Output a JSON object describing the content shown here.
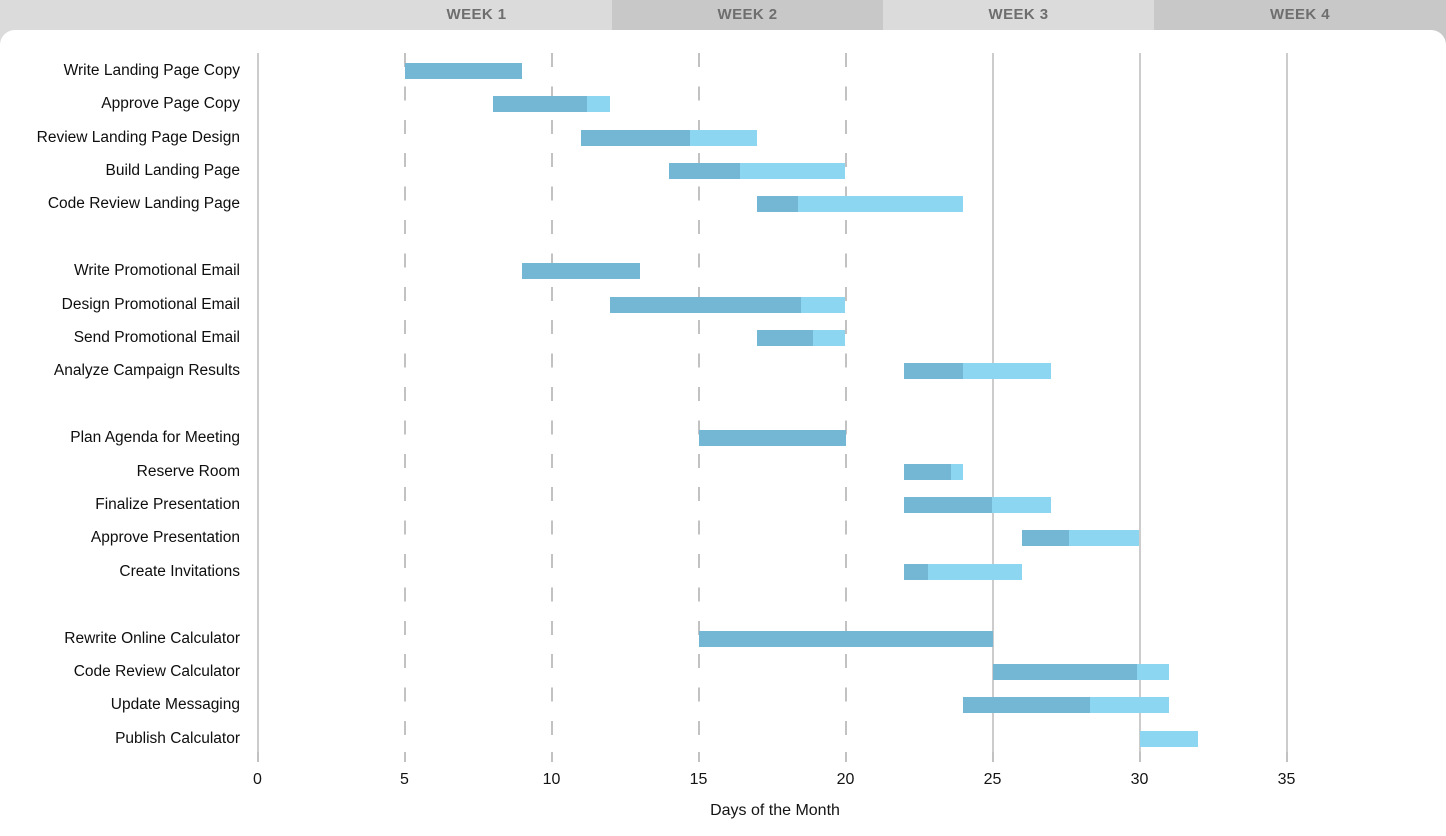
{
  "header": {
    "weeks": [
      "WEEK 1",
      "WEEK 2",
      "WEEK 3",
      "WEEK 4"
    ]
  },
  "axis": {
    "title": "Days of the Month",
    "tick_labels": [
      "0",
      "5",
      "10",
      "15",
      "20",
      "25",
      "30",
      "35"
    ]
  },
  "chart_data": {
    "type": "bar",
    "variant": "gantt-horizontal",
    "title": "",
    "xlabel": "Days of the Month",
    "ylabel": "",
    "xlim": [
      0,
      40.5
    ],
    "x_ticks": [
      0,
      5,
      10,
      15,
      20,
      25,
      30,
      35
    ],
    "solid_gridline_days": [
      0,
      25,
      30,
      35
    ],
    "dashed_gridline_days": [
      5,
      10,
      15,
      20
    ],
    "grid": "vertical-only",
    "legend": "none",
    "week_bands": [
      {
        "label": "WEEK 1",
        "shade": "light"
      },
      {
        "label": "WEEK 2",
        "shade": "dark"
      },
      {
        "label": "WEEK 3",
        "shade": "light"
      },
      {
        "label": "WEEK 4",
        "shade": "dark"
      }
    ],
    "colors": {
      "bar_complete": "#73b7d5",
      "bar_remaining": "#8dd6f1",
      "gridline_solid": "#cccccc",
      "gridline_dashed": "#c2c2c2",
      "week_band_light": "#dbdbdb",
      "week_band_dark": "#c8c8c8",
      "week_text": "#6e6e6e",
      "task_text": "#0e0e0e"
    },
    "groups": [
      {
        "tasks": [
          {
            "label": "Write Landing Page Copy",
            "start": 5,
            "progress_until": 9,
            "end": 9
          },
          {
            "label": "Approve Page Copy",
            "start": 8,
            "progress_until": 11.2,
            "end": 12
          },
          {
            "label": "Review Landing Page Design",
            "start": 11,
            "progress_until": 14.7,
            "end": 17
          },
          {
            "label": "Build Landing Page",
            "start": 14,
            "progress_until": 16.4,
            "end": 20
          },
          {
            "label": "Code Review Landing Page",
            "start": 17,
            "progress_until": 18.4,
            "end": 24
          }
        ]
      },
      {
        "tasks": [
          {
            "label": "Write Promotional Email",
            "start": 9,
            "progress_until": 13,
            "end": 13
          },
          {
            "label": "Design Promotional Email",
            "start": 12,
            "progress_until": 18.5,
            "end": 20
          },
          {
            "label": "Send Promotional Email",
            "start": 17,
            "progress_until": 18.9,
            "end": 20
          },
          {
            "label": "Analyze Campaign Results",
            "start": 22,
            "progress_until": 24,
            "end": 27
          }
        ]
      },
      {
        "tasks": [
          {
            "label": "Plan Agenda for Meeting",
            "start": 15,
            "progress_until": 20,
            "end": 20
          },
          {
            "label": "Reserve Room",
            "start": 22,
            "progress_until": 23.6,
            "end": 24
          },
          {
            "label": "Finalize Presentation",
            "start": 22,
            "progress_until": 25,
            "end": 27
          },
          {
            "label": "Approve Presentation",
            "start": 26,
            "progress_until": 27.6,
            "end": 30
          },
          {
            "label": "Create Invitations",
            "start": 22,
            "progress_until": 22.8,
            "end": 26
          }
        ]
      },
      {
        "tasks": [
          {
            "label": "Rewrite Online Calculator",
            "start": 15,
            "progress_until": 25,
            "end": 25
          },
          {
            "label": "Code Review Calculator",
            "start": 25,
            "progress_until": 29.9,
            "end": 31
          },
          {
            "label": "Update Messaging",
            "start": 24,
            "progress_until": 28.3,
            "end": 31
          },
          {
            "label": "Publish Calculator",
            "start": 30,
            "progress_until": 30,
            "end": 32
          }
        ]
      }
    ]
  }
}
